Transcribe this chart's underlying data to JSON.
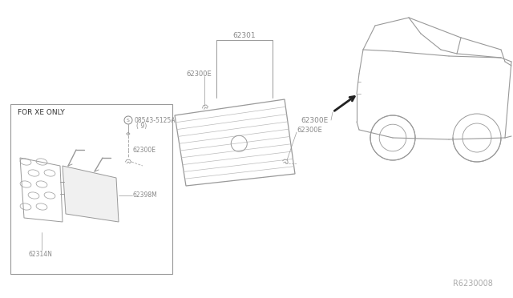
{
  "bg_color": "#ffffff",
  "lc": "#999999",
  "tc": "#888888",
  "dark": "#444444",
  "ref_number": "R6230008",
  "diagram_note": "FOR XE ONLY",
  "inset_label_screw": "08543-5125A",
  "inset_label_9": "( 9)",
  "inset_label_62300E": "62300E",
  "inset_label_62398M": "62398M",
  "inset_label_62314N": "62314N",
  "center_label_62301": "62301",
  "center_label_62300E_top": "62300E",
  "center_label_62300E_right": "62300E",
  "car_label_62300E": "62300E"
}
